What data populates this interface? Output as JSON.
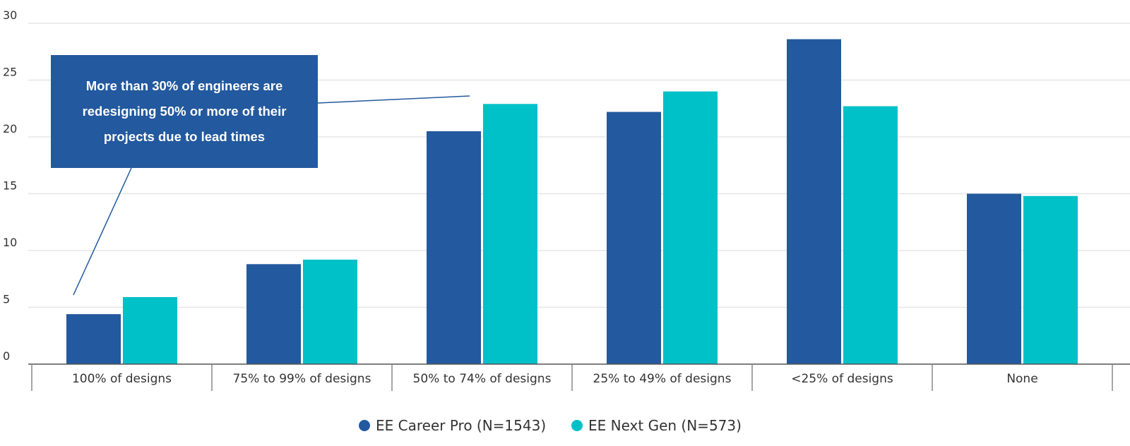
{
  "chart_data": {
    "type": "bar",
    "categories": [
      "100% of designs",
      "75% to 99% of designs",
      "50% to 74% of designs",
      "25% to 49% of designs",
      "<25% of designs",
      "None"
    ],
    "series": [
      {
        "name": "EE Career Pro (N=1543)",
        "color": "#23599e",
        "values": [
          4.4,
          8.8,
          20.5,
          22.2,
          28.6,
          15.0
        ]
      },
      {
        "name": "EE Next Gen (N=573)",
        "color": "#00c0c8",
        "values": [
          5.9,
          9.2,
          22.9,
          24.0,
          22.7,
          14.8
        ]
      }
    ],
    "yticks": [
      0,
      5,
      10,
      15,
      20,
      25,
      30
    ],
    "ylim": [
      0,
      30
    ],
    "grid": true,
    "legend_position": "bottom-center",
    "annotation": {
      "text": "More than 30% of engineers are redesigning 50% or more of their projects due to lead times",
      "color": "#23599e",
      "text_color": "#ffffff"
    },
    "colors": {
      "grid": "#e6e6e6",
      "axis": "#555555",
      "text": "#333333"
    }
  }
}
